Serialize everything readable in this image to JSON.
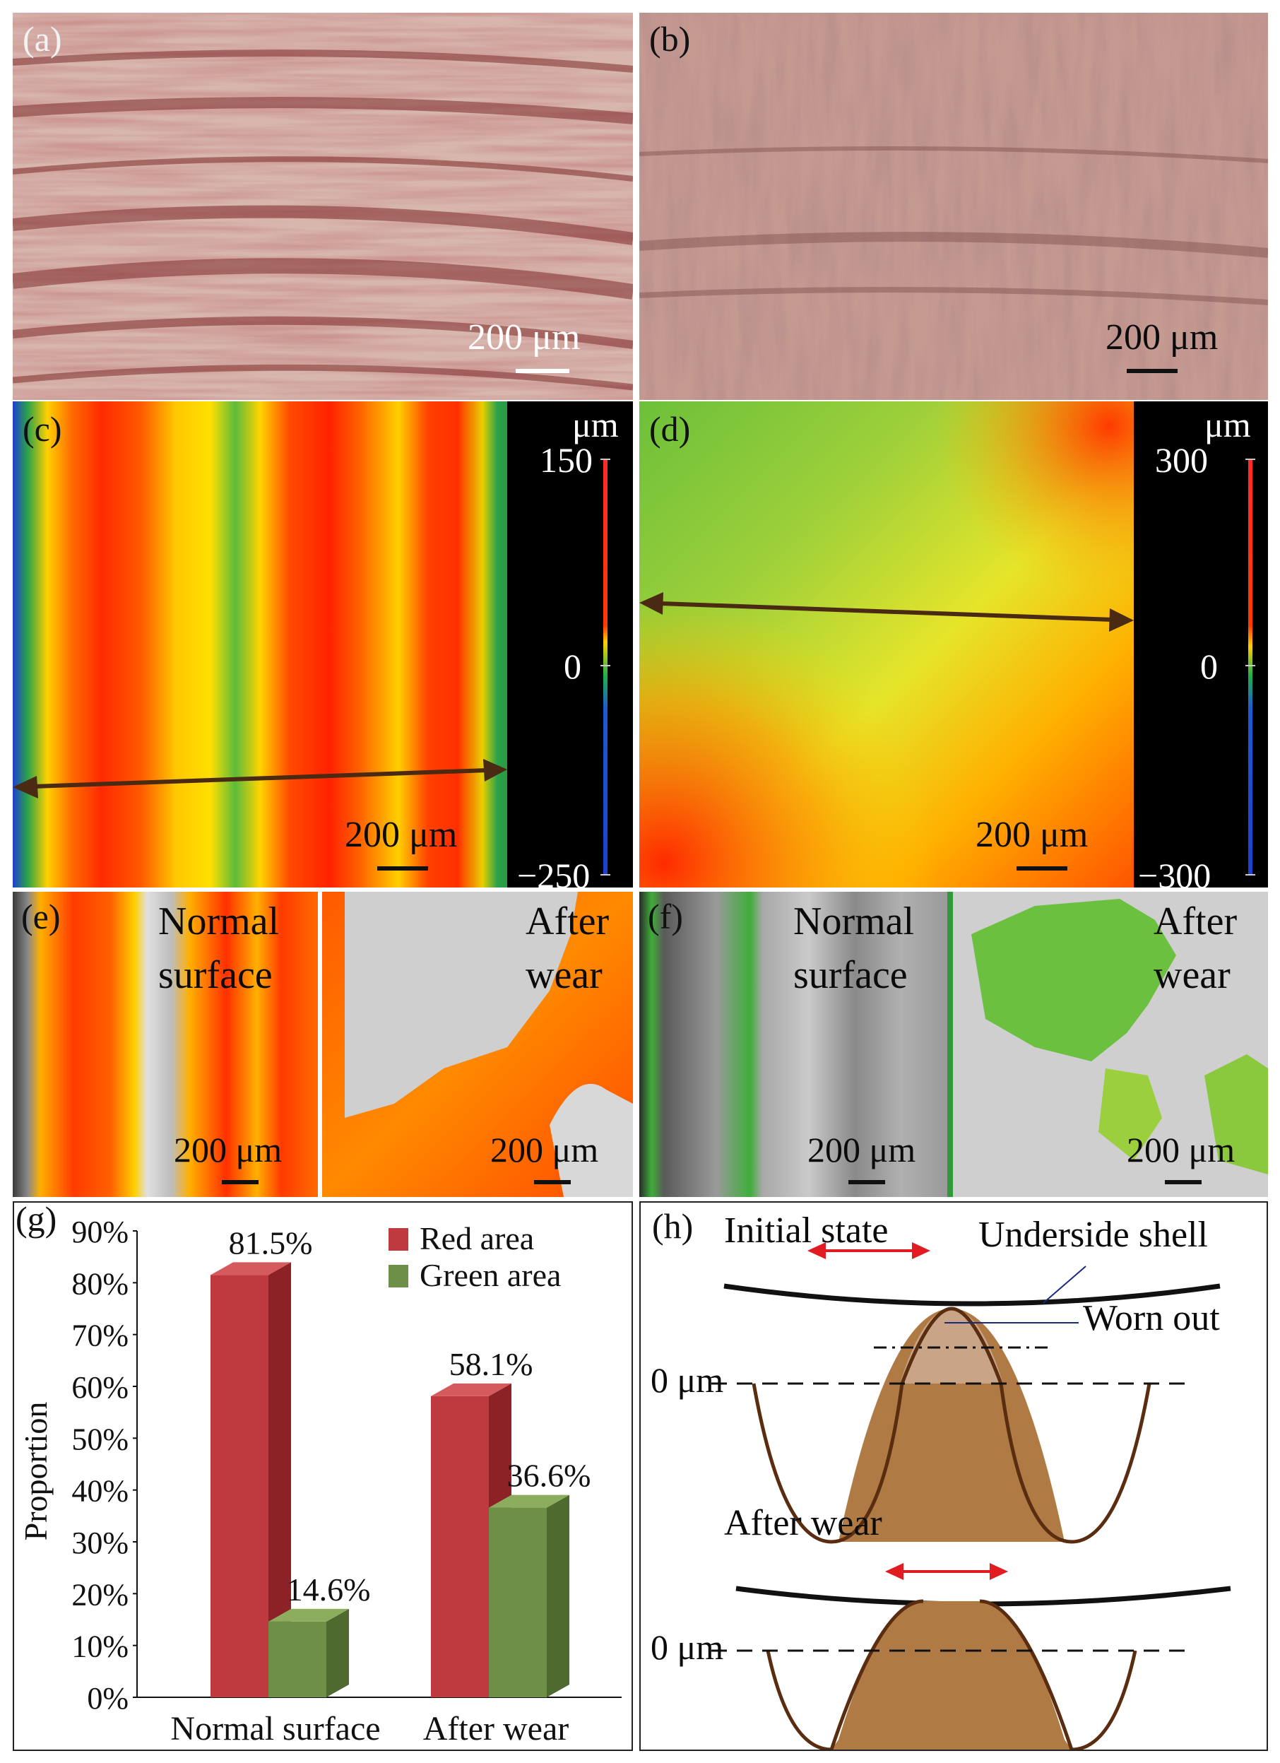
{
  "panels": {
    "a": {
      "label": "(a)",
      "scale": "200 μm"
    },
    "b": {
      "label": "(b)",
      "scale": "200 μm"
    },
    "c": {
      "label": "(c)",
      "scale": "200 μm",
      "unit": "μm",
      "cb_max": "150",
      "cb_zero": "0",
      "cb_min": "−250"
    },
    "d": {
      "label": "(d)",
      "scale": "200 μm",
      "unit": "μm",
      "cb_max": "300",
      "cb_zero": "0",
      "cb_min": "−300"
    },
    "e": {
      "label": "(e)",
      "left_title_1": "Normal",
      "left_title_2": "surface",
      "right_title_1": "After",
      "right_title_2": "wear",
      "scale_left": "200 μm",
      "scale_right": "200 μm"
    },
    "f": {
      "label": "(f)",
      "left_title_1": "Normal",
      "left_title_2": "surface",
      "right_title_1": "After",
      "right_title_2": "wear",
      "scale_left": "200 μm",
      "scale_right": "200 μm"
    },
    "h": {
      "label": "(h)",
      "initial_state": "Initial state",
      "underside_shell": "Underside shell",
      "worn_out": "Worn out",
      "zero_label_1": "0 μm",
      "after_wear": "After wear",
      "zero_label_2": "0 μm"
    }
  },
  "colors": {
    "red_bar": "#be3a3e",
    "green_bar": "#6d8f47",
    "profile_fill": "#b07a44",
    "profile_line": "#5a2d10",
    "arrow_red": "#e21a22"
  },
  "chart_data": {
    "type": "bar",
    "label": "(g)",
    "categories": [
      "Normal surface",
      "After wear"
    ],
    "series": [
      {
        "name": "Red area",
        "values": [
          81.5,
          58.1
        ],
        "data_labels": [
          "81.5%",
          "58.1%"
        ]
      },
      {
        "name": "Green area",
        "values": [
          14.6,
          36.6
        ],
        "data_labels": [
          "14.6%",
          "36.6%"
        ]
      }
    ],
    "ylabel": "Proportion",
    "ylim": [
      0,
      90
    ],
    "yticks": [
      "0%",
      "10%",
      "20%",
      "30%",
      "40%",
      "50%",
      "60%",
      "70%",
      "80%",
      "90%"
    ],
    "legend": "top-right",
    "grid": false
  }
}
